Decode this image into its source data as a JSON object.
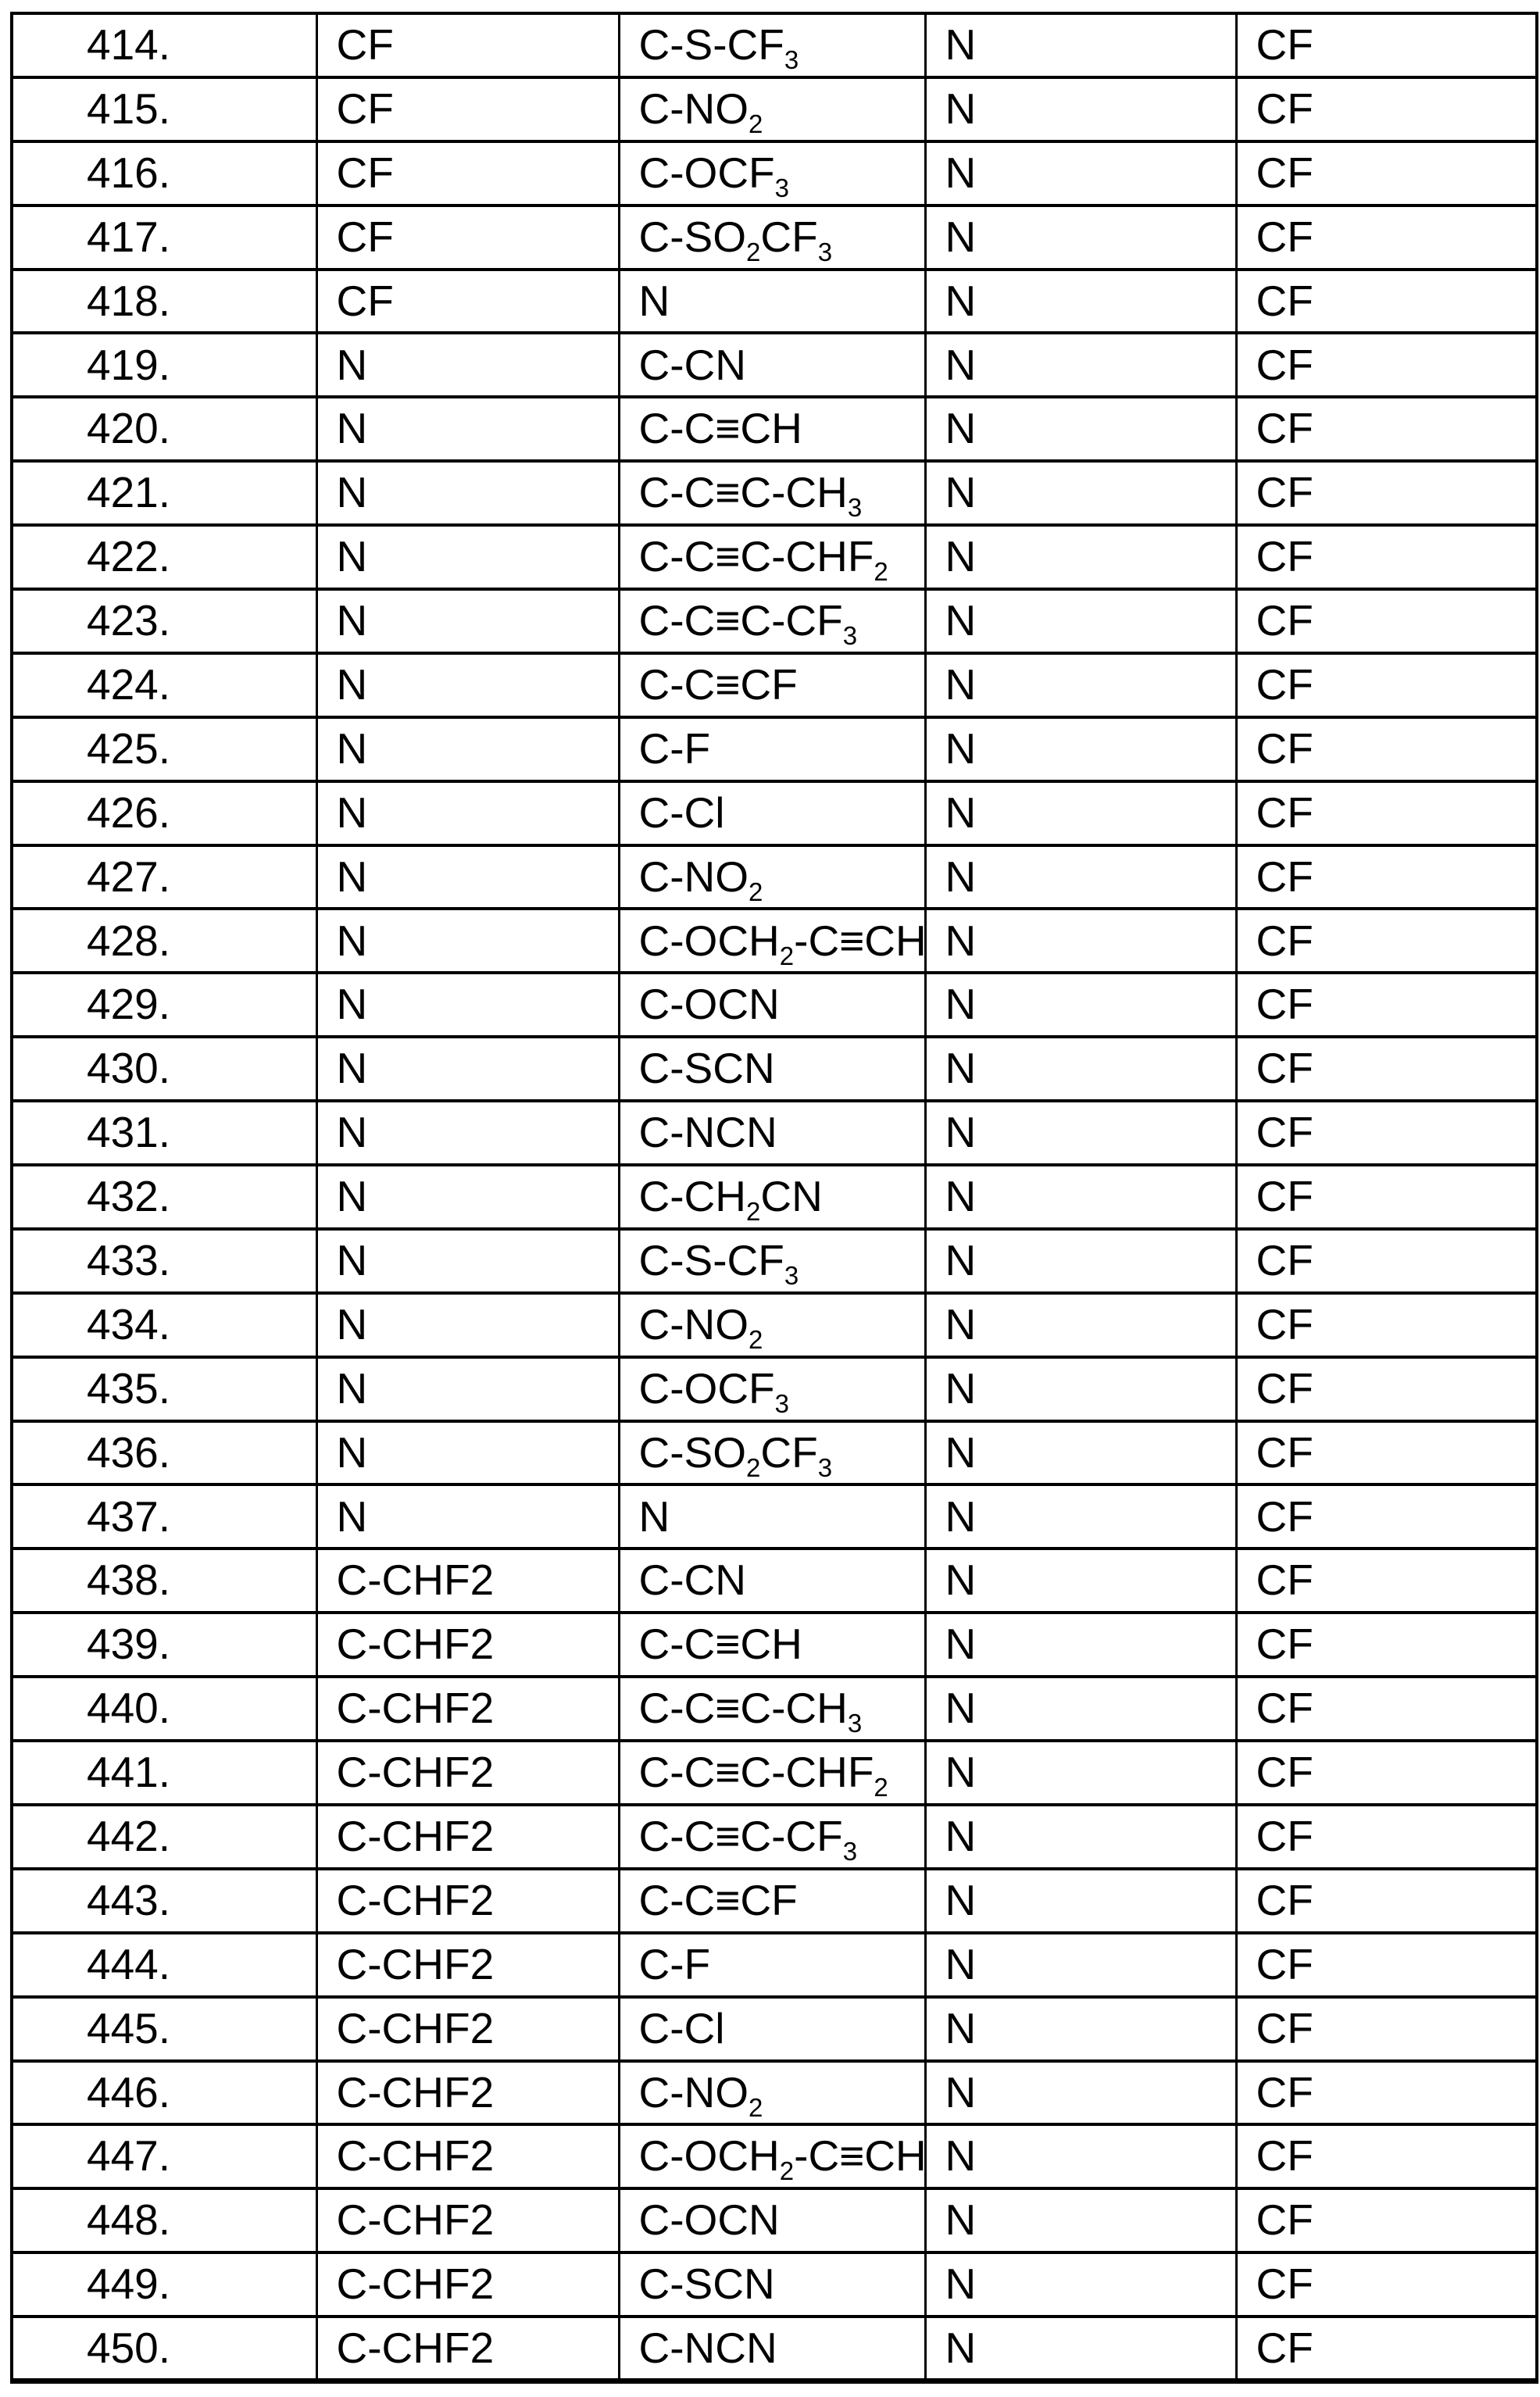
{
  "colors": {
    "background": "#ffffff",
    "grid_line": "#000000",
    "text": "#000000"
  },
  "table": {
    "rows": [
      {
        "num": "414.",
        "c1": "CF",
        "c2": "C-S-CF~3~",
        "c3": "N",
        "c4": "CF"
      },
      {
        "num": "415.",
        "c1": "CF",
        "c2": "C-NO~2~",
        "c3": "N",
        "c4": "CF"
      },
      {
        "num": "416.",
        "c1": "CF",
        "c2": "C-OCF~3~",
        "c3": "N",
        "c4": "CF"
      },
      {
        "num": "417.",
        "c1": "CF",
        "c2": "C-SO~2~CF~3~",
        "c3": "N",
        "c4": "CF"
      },
      {
        "num": "418.",
        "c1": "CF",
        "c2": "N",
        "c3": "N",
        "c4": "CF"
      },
      {
        "num": "419.",
        "c1": "N",
        "c2": "C-CN",
        "c3": "N",
        "c4": "CF"
      },
      {
        "num": "420.",
        "c1": "N",
        "c2": "C-C≡CH",
        "c3": "N",
        "c4": "CF"
      },
      {
        "num": "421.",
        "c1": "N",
        "c2": "C-C≡C-CH~3~",
        "c3": "N",
        "c4": "CF"
      },
      {
        "num": "422.",
        "c1": "N",
        "c2": "C-C≡C-CHF~2~",
        "c3": "N",
        "c4": "CF"
      },
      {
        "num": "423.",
        "c1": "N",
        "c2": "C-C≡C-CF~3~",
        "c3": "N",
        "c4": "CF"
      },
      {
        "num": "424.",
        "c1": "N",
        "c2": "C-C≡CF",
        "c3": "N",
        "c4": "CF"
      },
      {
        "num": "425.",
        "c1": "N",
        "c2": "C-F",
        "c3": "N",
        "c4": "CF"
      },
      {
        "num": "426.",
        "c1": "N",
        "c2": "C-Cl",
        "c3": "N",
        "c4": "CF"
      },
      {
        "num": "427.",
        "c1": "N",
        "c2": "C-NO~2~",
        "c3": "N",
        "c4": "CF"
      },
      {
        "num": "428.",
        "c1": "N",
        "c2": "C-OCH~2~-C≡CH",
        "c3": "N",
        "c4": "CF"
      },
      {
        "num": "429.",
        "c1": "N",
        "c2": "C-OCN",
        "c3": "N",
        "c4": "CF"
      },
      {
        "num": "430.",
        "c1": "N",
        "c2": "C-SCN",
        "c3": "N",
        "c4": "CF"
      },
      {
        "num": "431.",
        "c1": "N",
        "c2": "C-NCN",
        "c3": "N",
        "c4": "CF"
      },
      {
        "num": "432.",
        "c1": "N",
        "c2": "C-CH~2~CN",
        "c3": "N",
        "c4": "CF"
      },
      {
        "num": "433.",
        "c1": "N",
        "c2": "C-S-CF~3~",
        "c3": "N",
        "c4": "CF"
      },
      {
        "num": "434.",
        "c1": "N",
        "c2": "C-NO~2~",
        "c3": "N",
        "c4": "CF"
      },
      {
        "num": "435.",
        "c1": "N",
        "c2": "C-OCF~3~",
        "c3": "N",
        "c4": "CF"
      },
      {
        "num": "436.",
        "c1": "N",
        "c2": "C-SO~2~CF~3~",
        "c3": "N",
        "c4": "CF"
      },
      {
        "num": "437.",
        "c1": "N",
        "c2": "N",
        "c3": "N",
        "c4": "CF"
      },
      {
        "num": "438.",
        "c1": "C-CHF2",
        "c2": "C-CN",
        "c3": "N",
        "c4": "CF"
      },
      {
        "num": "439.",
        "c1": "C-CHF2",
        "c2": "C-C≡CH",
        "c3": "N",
        "c4": "CF"
      },
      {
        "num": "440.",
        "c1": "C-CHF2",
        "c2": "C-C≡C-CH~3~",
        "c3": "N",
        "c4": "CF"
      },
      {
        "num": "441.",
        "c1": "C-CHF2",
        "c2": "C-C≡C-CHF~2~",
        "c3": "N",
        "c4": "CF"
      },
      {
        "num": "442.",
        "c1": "C-CHF2",
        "c2": "C-C≡C-CF~3~",
        "c3": "N",
        "c4": "CF"
      },
      {
        "num": "443.",
        "c1": "C-CHF2",
        "c2": "C-C≡CF",
        "c3": "N",
        "c4": "CF"
      },
      {
        "num": "444.",
        "c1": "C-CHF2",
        "c2": "C-F",
        "c3": "N",
        "c4": "CF"
      },
      {
        "num": "445.",
        "c1": "C-CHF2",
        "c2": "C-Cl",
        "c3": "N",
        "c4": "CF"
      },
      {
        "num": "446.",
        "c1": "C-CHF2",
        "c2": "C-NO~2~",
        "c3": "N",
        "c4": "CF"
      },
      {
        "num": "447.",
        "c1": "C-CHF2",
        "c2": "C-OCH~2~-C≡CH",
        "c3": "N",
        "c4": "CF"
      },
      {
        "num": "448.",
        "c1": "C-CHF2",
        "c2": "C-OCN",
        "c3": "N",
        "c4": "CF"
      },
      {
        "num": "449.",
        "c1": "C-CHF2",
        "c2": "C-SCN",
        "c3": "N",
        "c4": "CF"
      },
      {
        "num": "450.",
        "c1": "C-CHF2",
        "c2": "C-NCN",
        "c3": "N",
        "c4": "CF"
      }
    ]
  }
}
